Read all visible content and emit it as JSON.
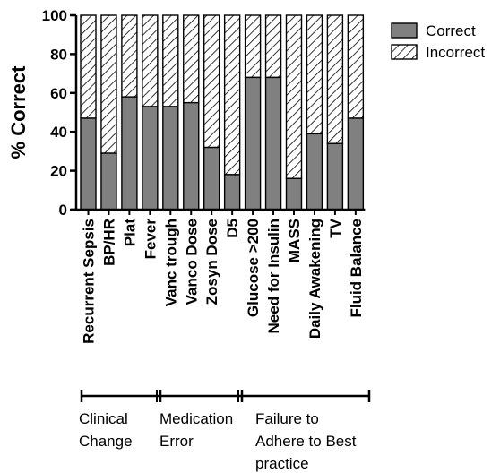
{
  "chart_data": {
    "type": "bar",
    "stacked": true,
    "ylabel": "% Correct",
    "ylim": [
      0,
      100
    ],
    "yticks": [
      0,
      20,
      40,
      60,
      80,
      100
    ],
    "categories": [
      "Recurrent Sepsis",
      "BP/HR",
      "Plat",
      "Fever",
      "Vanc trough",
      "Vanco Dose",
      "Zosyn Dose",
      "D5",
      "Glucose >200",
      "Need for Insulin",
      "MASS",
      "Daily Awakening",
      "TV",
      "Fluid Balance"
    ],
    "series": [
      {
        "name": "Correct",
        "values": [
          47,
          29,
          58,
          53,
          53,
          55,
          32,
          18,
          68,
          68,
          16,
          39,
          34,
          47
        ],
        "color": "#808080",
        "pattern": "solid"
      },
      {
        "name": "Incorrect",
        "values": [
          53,
          71,
          42,
          47,
          47,
          45,
          68,
          82,
          32,
          32,
          84,
          61,
          66,
          53
        ],
        "color": "#ffffff",
        "pattern": "hatch"
      }
    ],
    "legend_position": "top-right",
    "groups": [
      {
        "label_lines": [
          "Clinical",
          "Change"
        ],
        "categories": [
          "Recurrent Sepsis",
          "BP/HR",
          "Plat",
          "Fever"
        ]
      },
      {
        "label_lines": [
          "Medication",
          "Error"
        ],
        "categories": [
          "Vanc trough",
          "Vanco Dose",
          "Zosyn Dose",
          "D5"
        ]
      },
      {
        "label_lines": [
          "Failure to",
          "Adhere to Best",
          "practice"
        ],
        "categories": [
          "Glucose >200",
          "Need for Insulin",
          "MASS",
          "Daily Awakening",
          "TV",
          "Fluid Balance"
        ]
      }
    ]
  }
}
